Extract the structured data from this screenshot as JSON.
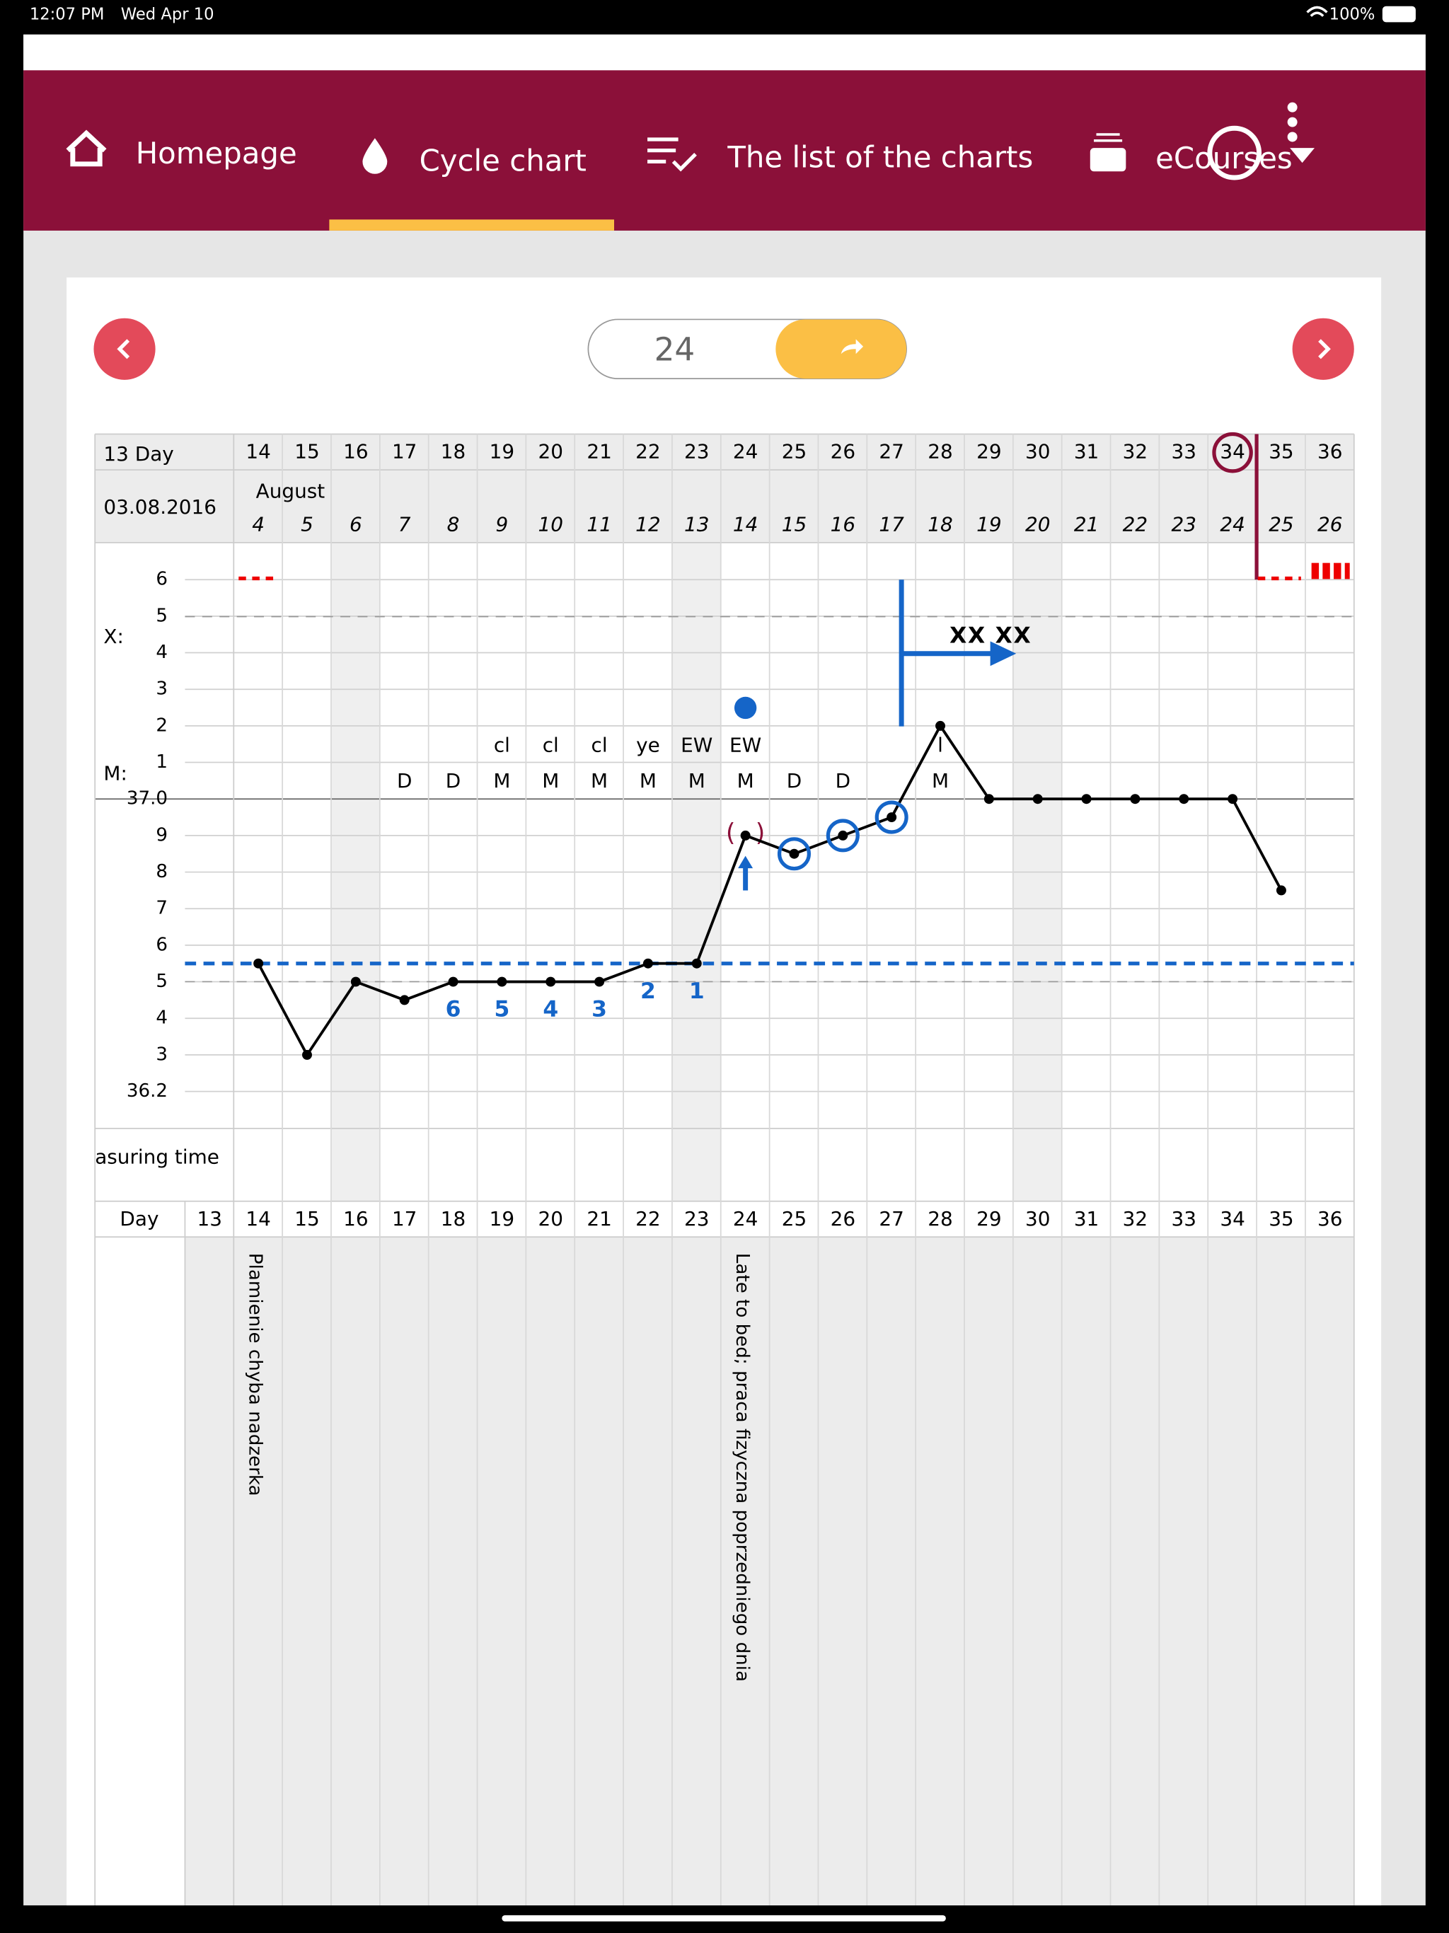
{
  "status_bar": {
    "time": "12:07 PM",
    "date": "Wed Apr 10",
    "battery": "100%"
  },
  "nav": {
    "items": [
      "Homepage",
      "Cycle chart",
      "The list of the charts",
      "eCourses"
    ],
    "active": 1
  },
  "cycle_input": "24",
  "chart": {
    "header_label": "13 Day",
    "start_date": "03.08.2016",
    "month": "August",
    "cycle_days": [
      13,
      14,
      15,
      16,
      17,
      18,
      19,
      20,
      21,
      22,
      23,
      24,
      25,
      26,
      27,
      28,
      29,
      30,
      31,
      32,
      33,
      34,
      35,
      36
    ],
    "dates": [
      null,
      4,
      5,
      6,
      7,
      8,
      9,
      10,
      11,
      12,
      13,
      14,
      15,
      16,
      17,
      18,
      19,
      20,
      21,
      22,
      23,
      24,
      25,
      26
    ],
    "row_labels": {
      "x": "X:",
      "m": "M:",
      "measuring_time": "asuring time",
      "day": "Day"
    },
    "ylim": [
      36.2,
      37.6
    ],
    "yticks": [
      {
        "value": 37.6,
        "label": "6"
      },
      {
        "value": 37.5,
        "label": "5"
      },
      {
        "value": 37.4,
        "label": "4"
      },
      {
        "value": 37.3,
        "label": "3"
      },
      {
        "value": 37.2,
        "label": "2"
      },
      {
        "value": 37.1,
        "label": "1"
      },
      {
        "value": 37.0,
        "label": "37.0"
      },
      {
        "value": 36.9,
        "label": "9"
      },
      {
        "value": 36.8,
        "label": "8"
      },
      {
        "value": 36.7,
        "label": "7"
      },
      {
        "value": 36.6,
        "label": "6"
      },
      {
        "value": 36.5,
        "label": "5"
      },
      {
        "value": 36.4,
        "label": "4"
      },
      {
        "value": 36.3,
        "label": "3"
      },
      36.2
    ],
    "temperatures": [
      null,
      36.55,
      36.3,
      36.5,
      36.45,
      36.5,
      36.5,
      36.5,
      36.5,
      36.55,
      36.55,
      36.9,
      36.85,
      36.9,
      36.95,
      37.2,
      37.0,
      37.0,
      37.0,
      37.0,
      37.0,
      37.0,
      36.75,
      null
    ],
    "coverline": 36.55,
    "low_count": [
      null,
      null,
      null,
      null,
      null,
      6,
      5,
      4,
      3,
      2,
      1,
      null,
      null,
      null,
      null,
      null,
      null,
      null,
      null,
      null,
      null,
      null,
      null,
      null
    ],
    "signs_upper": [
      null,
      null,
      null,
      null,
      null,
      null,
      "cl",
      "cl",
      "cl",
      "ye",
      "EW",
      "EW",
      null,
      null,
      null,
      "l",
      null,
      null,
      null,
      null,
      null,
      null,
      null,
      null
    ],
    "signs_lower": [
      null,
      null,
      null,
      null,
      "D",
      "D",
      "M",
      "M",
      "M",
      "M",
      "M",
      "M",
      "D",
      "D",
      null,
      "M",
      null,
      null,
      null,
      null,
      null,
      null,
      null,
      null
    ],
    "circled_days": [
      25,
      26,
      27
    ],
    "marked_day": 24,
    "highlight_day": 34,
    "annotation": "XX XX",
    "notes": [
      null,
      "Plamienie chyba nadzerka",
      null,
      null,
      null,
      null,
      null,
      null,
      null,
      null,
      null,
      "Late to bed; praca fizyczna poprzedniego dnia",
      null,
      null,
      null,
      null,
      null,
      null,
      null,
      null,
      null,
      null,
      null,
      null
    ]
  }
}
